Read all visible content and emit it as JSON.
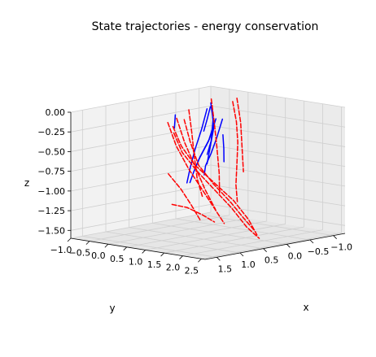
{
  "colors": {
    "background": "#ffffff",
    "pane_left": "#f2f2f2",
    "pane_back": "#ebebeb",
    "pane_floor": "#e6e6e6",
    "grid": "#cfcfcf",
    "axis": "#000000",
    "trajectory_solid": "#0000ff",
    "trajectory_dashed": "#ff0000"
  },
  "chart_data": {
    "type": "line3d",
    "title": "State trajectories - energy conservation",
    "xlabel": "x",
    "ylabel": "y",
    "zlabel": "z",
    "xlim": [
      -1.25,
      1.75
    ],
    "ylim": [
      -1.0,
      2.6
    ],
    "zlim": [
      -1.6,
      0.0
    ],
    "grid": true,
    "legend": "none",
    "x_ticks": [
      "−1.0",
      "−0.5",
      "0.0",
      "0.5",
      "1.0",
      "1.5"
    ],
    "x_tick_values": [
      -1.0,
      -0.5,
      0.0,
      0.5,
      1.0,
      1.5
    ],
    "y_ticks": [
      "−1.0",
      "−0.5",
      "0.0",
      "0.5",
      "1.0",
      "1.5",
      "2.0",
      "2.5"
    ],
    "y_tick_values": [
      -1.0,
      -0.5,
      0.0,
      0.5,
      1.0,
      1.5,
      2.0,
      2.5
    ],
    "z_ticks": [
      "0.00",
      "−0.25",
      "−0.50",
      "−0.75",
      "−1.00",
      "−1.25",
      "−1.50"
    ],
    "z_tick_values": [
      0.0,
      -0.25,
      -0.5,
      -0.75,
      -1.0,
      -1.25,
      -1.5
    ],
    "series": [
      {
        "style": "solid",
        "color": "#0000ff",
        "points": [
          [
            0.1,
            1.0,
            -0.12
          ],
          [
            0.18,
            0.95,
            -0.35
          ],
          [
            0.22,
            0.85,
            -0.55
          ],
          [
            0.22,
            0.7,
            -0.72
          ],
          [
            0.17,
            0.6,
            -0.85
          ]
        ]
      },
      {
        "style": "solid",
        "color": "#0000ff",
        "points": [
          [
            0.0,
            0.7,
            -0.15
          ],
          [
            0.1,
            0.65,
            -0.4
          ],
          [
            0.22,
            0.55,
            -0.62
          ],
          [
            0.28,
            0.45,
            -0.82
          ],
          [
            0.3,
            0.38,
            -0.95
          ]
        ]
      },
      {
        "style": "solid",
        "color": "#0000ff",
        "points": [
          [
            -0.05,
            0.4,
            -0.05
          ],
          [
            0.05,
            0.38,
            -0.3
          ],
          [
            0.17,
            0.35,
            -0.55
          ],
          [
            0.25,
            0.32,
            -0.78
          ],
          [
            0.3,
            0.3,
            -0.96
          ]
        ]
      },
      {
        "style": "solid",
        "color": "#0000ff",
        "points": [
          [
            -0.1,
            0.55,
            -0.2
          ],
          [
            0.0,
            0.5,
            -0.45
          ],
          [
            0.15,
            0.42,
            -0.68
          ],
          [
            0.2,
            0.38,
            -0.8
          ]
        ]
      },
      {
        "style": "solid",
        "color": "#0000ff",
        "points": [
          [
            -0.2,
            0.3,
            -0.05
          ],
          [
            -0.15,
            0.28,
            -0.2
          ],
          [
            -0.1,
            0.25,
            -0.35
          ]
        ]
      },
      {
        "style": "solid",
        "color": "#0000ff",
        "points": [
          [
            -0.4,
            0.1,
            -0.1
          ],
          [
            -0.35,
            0.2,
            -0.35
          ],
          [
            -0.2,
            0.3,
            -0.55
          ],
          [
            -0.05,
            0.4,
            -0.75
          ]
        ]
      },
      {
        "style": "solid",
        "color": "#0000ff",
        "points": [
          [
            -0.45,
            0.0,
            -0.05
          ],
          [
            -0.42,
            0.1,
            -0.25
          ],
          [
            -0.3,
            0.2,
            -0.5
          ],
          [
            -0.15,
            0.28,
            -0.65
          ]
        ]
      },
      {
        "style": "solid",
        "color": "#0000ff",
        "points": [
          [
            -0.55,
            0.2,
            -0.45
          ],
          [
            -0.45,
            0.35,
            -0.6
          ],
          [
            -0.35,
            0.48,
            -0.75
          ]
        ]
      },
      {
        "style": "solid",
        "color": "#0000ff",
        "points": [
          [
            0.15,
            -0.2,
            -0.15
          ],
          [
            0.25,
            -0.1,
            -0.3
          ]
        ]
      },
      {
        "style": "dashed",
        "color": "#ff0000",
        "points": [
          [
            1.4,
            1.3,
            -0.05
          ],
          [
            1.3,
            1.4,
            -0.3
          ],
          [
            1.1,
            1.5,
            -0.55
          ],
          [
            0.8,
            1.65,
            -0.8
          ],
          [
            0.5,
            1.8,
            -1.05
          ],
          [
            0.3,
            1.95,
            -1.3
          ],
          [
            0.2,
            2.05,
            -1.5
          ]
        ]
      },
      {
        "style": "dashed",
        "color": "#ff0000",
        "points": [
          [
            1.3,
            1.2,
            -0.15
          ],
          [
            1.2,
            1.3,
            -0.4
          ],
          [
            1.0,
            1.45,
            -0.65
          ],
          [
            0.75,
            1.6,
            -0.9
          ],
          [
            0.5,
            1.75,
            -1.15
          ],
          [
            0.3,
            1.9,
            -1.4
          ],
          [
            0.15,
            2.05,
            -1.55
          ]
        ]
      },
      {
        "style": "dashed",
        "color": "#ff0000",
        "points": [
          [
            1.0,
            1.1,
            -0.02
          ],
          [
            0.95,
            1.2,
            -0.3
          ],
          [
            0.85,
            1.3,
            -0.6
          ],
          [
            0.65,
            1.45,
            -0.85
          ],
          [
            0.4,
            1.6,
            -1.1
          ],
          [
            0.25,
            1.75,
            -1.3
          ],
          [
            0.15,
            1.9,
            -1.45
          ]
        ]
      },
      {
        "style": "dashed",
        "color": "#ff0000",
        "points": [
          [
            0.95,
            0.6,
            -0.1
          ],
          [
            0.85,
            0.7,
            -0.4
          ],
          [
            0.7,
            0.85,
            -0.7
          ],
          [
            0.55,
            1.0,
            -0.95
          ],
          [
            0.4,
            1.15,
            -1.2
          ],
          [
            0.3,
            1.3,
            -1.4
          ]
        ]
      },
      {
        "style": "dashed",
        "color": "#ff0000",
        "points": [
          [
            1.1,
            0.9,
            -1.1
          ],
          [
            0.9,
            1.05,
            -1.15
          ],
          [
            0.7,
            1.2,
            -1.25
          ],
          [
            0.55,
            1.35,
            -1.35
          ]
        ]
      },
      {
        "style": "dashed",
        "color": "#ff0000",
        "points": [
          [
            0.6,
            0.4,
            -0.1
          ],
          [
            0.55,
            0.55,
            -0.4
          ],
          [
            0.45,
            0.7,
            -0.7
          ],
          [
            0.35,
            0.85,
            -1.0
          ],
          [
            0.25,
            1.0,
            -1.25
          ]
        ]
      },
      {
        "style": "dashed",
        "color": "#ff0000",
        "points": [
          [
            -0.3,
            -0.4,
            -0.15
          ],
          [
            -0.2,
            -0.2,
            -0.4
          ],
          [
            -0.1,
            0.0,
            -0.7
          ],
          [
            0.0,
            0.2,
            -0.95
          ],
          [
            0.05,
            0.4,
            -1.15
          ]
        ]
      },
      {
        "style": "dashed",
        "color": "#ff0000",
        "points": [
          [
            -0.7,
            -0.3,
            -0.05
          ],
          [
            -0.6,
            -0.1,
            -0.3
          ],
          [
            -0.5,
            0.1,
            -0.6
          ],
          [
            -0.35,
            0.35,
            -0.9
          ],
          [
            -0.2,
            0.55,
            -1.15
          ]
        ]
      },
      {
        "style": "dashed",
        "color": "#ff0000",
        "points": [
          [
            -1.0,
            -0.1,
            -0.1
          ],
          [
            -1.0,
            0.0,
            -0.35
          ],
          [
            -0.95,
            0.1,
            -0.6
          ],
          [
            -0.85,
            0.2,
            -0.85
          ],
          [
            -0.75,
            0.3,
            -1.1
          ],
          [
            -0.7,
            0.4,
            -1.3
          ]
        ]
      },
      {
        "style": "dashed",
        "color": "#ff0000",
        "points": [
          [
            -1.25,
            -0.3,
            -0.1
          ],
          [
            -1.25,
            -0.2,
            -0.4
          ],
          [
            -1.2,
            -0.1,
            -0.7
          ],
          [
            -1.15,
            0.0,
            -1.0
          ]
        ]
      },
      {
        "style": "dashed",
        "color": "#ff0000",
        "points": [
          [
            0.7,
            0.3,
            -0.8
          ],
          [
            0.55,
            0.45,
            -1.0
          ],
          [
            0.45,
            0.6,
            -1.2
          ],
          [
            0.4,
            0.8,
            -1.4
          ]
        ]
      }
    ]
  }
}
